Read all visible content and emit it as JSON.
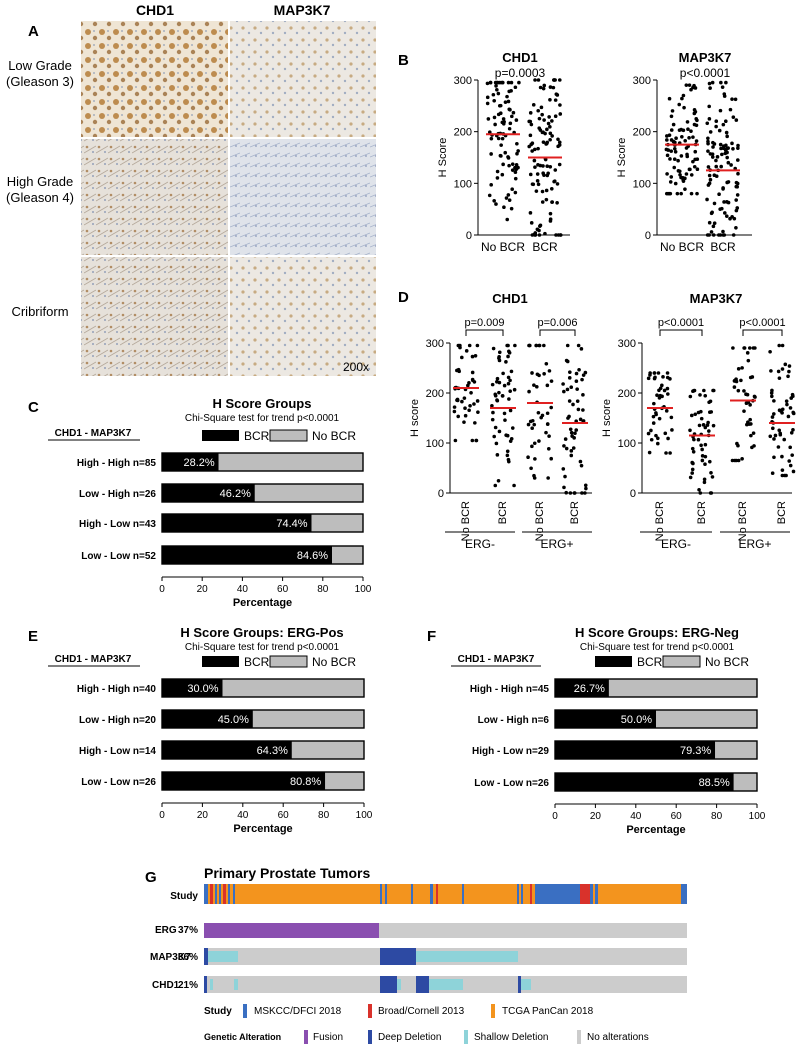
{
  "colors": {
    "black": "#000000",
    "gray": "#bdbdbd",
    "median": "#e02020",
    "msk": "#3a6fc2",
    "broad": "#d9322b",
    "tcga": "#f3941e",
    "fusion": "#8a4fb0",
    "deep": "#2d4aa3",
    "shallow": "#8ed3d9",
    "noalt": "#cccccc"
  },
  "panelA": {
    "letter": "A",
    "cols": [
      "CHD1",
      "MAP3K7"
    ],
    "rows": [
      {
        "label1": "Low Grade",
        "label2": "(Gleason 3)"
      },
      {
        "label1": "High Grade",
        "label2": "(Gleason 4)"
      },
      {
        "label1": "Cribriform",
        "label2": ""
      }
    ],
    "mag": "200x"
  },
  "panelB": {
    "letter": "B"
  },
  "panelC": {
    "letter": "C",
    "header": "CHD1 - MAP3K7"
  },
  "panelD": {
    "letter": "D",
    "group_neg": "ERG-",
    "group_pos": "ERG+"
  },
  "panelE": {
    "letter": "E",
    "header": "CHD1 - MAP3K7"
  },
  "panelF": {
    "letter": "F",
    "header": "CHD1 - MAP3K7"
  },
  "panelG": {
    "letter": "G",
    "title": "Primary Prostate Tumors",
    "study_label": "Study",
    "tracks": [
      {
        "name": "ERG",
        "pct": "37%"
      },
      {
        "name": "MAP3K7",
        "pct": "36%"
      },
      {
        "name": "CHD1",
        "pct": "21%"
      }
    ],
    "legend_study_title": "Study",
    "legend_studies": [
      "MSKCC/DFCI 2018",
      "Broad/Cornell 2013",
      "TCGA PanCan 2018"
    ],
    "legend_alt_title": "Genetic Alteration",
    "legend_alts": [
      "Fusion",
      "Deep Deletion",
      "Shallow Deletion",
      "No alterations"
    ]
  },
  "chart_data": [
    {
      "panel": "B",
      "type": "scatter",
      "title": "CHD1",
      "pvalue": "p=0.0003",
      "ylabel": "H Score",
      "categories": [
        "No BCR",
        "BCR"
      ],
      "ylim": [
        0,
        300
      ],
      "yticks": [
        0,
        100,
        200,
        300
      ],
      "medians": [
        195,
        150
      ],
      "spread": [
        [
          30,
          295
        ],
        [
          0,
          300
        ]
      ],
      "n": [
        90,
        110
      ]
    },
    {
      "panel": "B",
      "type": "scatter",
      "title": "MAP3K7",
      "pvalue": "p<0.0001",
      "ylabel": "H Score",
      "categories": [
        "No BCR",
        "BCR"
      ],
      "ylim": [
        0,
        300
      ],
      "yticks": [
        0,
        100,
        200,
        300
      ],
      "medians": [
        175,
        125
      ],
      "spread": [
        [
          80,
          290
        ],
        [
          0,
          295
        ]
      ],
      "n": [
        90,
        110
      ]
    },
    {
      "panel": "D",
      "type": "scatter",
      "title": "CHD1",
      "ylabel": "H score",
      "categories": [
        "No BCR",
        "BCR",
        "No BCR",
        "BCR"
      ],
      "groups": [
        "ERG-",
        "ERG+"
      ],
      "pvalues": [
        "p=0.009",
        "p=0.006"
      ],
      "ylim": [
        0,
        300
      ],
      "yticks": [
        0,
        100,
        200,
        300
      ],
      "medians": [
        210,
        170,
        180,
        140
      ],
      "spread": [
        [
          105,
          295
        ],
        [
          15,
          295
        ],
        [
          30,
          295
        ],
        [
          0,
          295
        ]
      ],
      "n": [
        45,
        55,
        45,
        55
      ]
    },
    {
      "panel": "D",
      "type": "scatter",
      "title": "MAP3K7",
      "ylabel": "H score",
      "categories": [
        "No BCR",
        "BCR",
        "No BCR",
        "BCR"
      ],
      "groups": [
        "ERG-",
        "ERG+"
      ],
      "pvalues": [
        "p<0.0001",
        "p<0.0001"
      ],
      "ylim": [
        0,
        300
      ],
      "yticks": [
        0,
        100,
        200,
        300
      ],
      "medians": [
        170,
        115,
        185,
        140
      ],
      "spread": [
        [
          80,
          240
        ],
        [
          0,
          205
        ],
        [
          65,
          290
        ],
        [
          35,
          295
        ]
      ],
      "n": [
        45,
        55,
        45,
        55
      ]
    },
    {
      "panel": "C",
      "type": "bar",
      "title": "H Score Groups",
      "subtitle": "Chi-Square test for trend p<0.0001",
      "xlabel": "Percentage",
      "xlim": [
        0,
        100
      ],
      "xticks": [
        0,
        20,
        40,
        60,
        80,
        100
      ],
      "legend": [
        "BCR",
        "No BCR"
      ],
      "categories": [
        "High  -  High  n=85",
        "Low  -  High  n=26",
        "High  -  Low  n=43",
        "Low  -  Low  n=52"
      ],
      "values": [
        28.2,
        46.2,
        74.4,
        84.6
      ],
      "labels": [
        "28.2%",
        "46.2%",
        "74.4%",
        "84.6%"
      ]
    },
    {
      "panel": "E",
      "type": "bar",
      "title": "H Score Groups: ERG-Pos",
      "subtitle": "Chi-Square test for trend p<0.0001",
      "xlabel": "Percentage",
      "xlim": [
        0,
        100
      ],
      "xticks": [
        0,
        20,
        40,
        60,
        80,
        100
      ],
      "legend": [
        "BCR",
        "No BCR"
      ],
      "categories": [
        "High  -  High  n=40",
        "Low  -  High  n=20",
        "High  -  Low  n=14",
        "Low  -  Low  n=26"
      ],
      "values": [
        30.0,
        45.0,
        64.3,
        80.8
      ],
      "labels": [
        "30.0%",
        "45.0%",
        "64.3%",
        "80.8%"
      ]
    },
    {
      "panel": "F",
      "type": "bar",
      "title": "H Score Groups: ERG-Neg",
      "subtitle": "Chi-Square test for trend p<0.0001",
      "xlabel": "Percentage",
      "xlim": [
        0,
        100
      ],
      "xticks": [
        0,
        20,
        40,
        60,
        80,
        100
      ],
      "legend": [
        "BCR",
        "No BCR"
      ],
      "categories": [
        "High  -  High  n=45",
        "Low  -  High    n=6",
        "High  -  Low  n=29",
        "Low  -  Low  n=26"
      ],
      "values": [
        26.7,
        50.0,
        79.3,
        88.5
      ],
      "labels": [
        "26.7%",
        "50.0%",
        "79.3%",
        "88.5%"
      ]
    }
  ]
}
